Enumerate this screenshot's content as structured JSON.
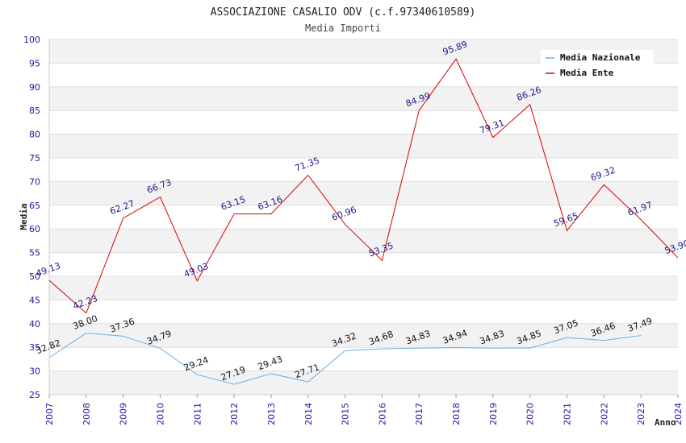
{
  "chart_data": {
    "type": "line",
    "title": "ASSOCIAZIONE CASALIO ODV (c.f.97340610589)",
    "subtitle": "Media Importi",
    "xlabel": "Anno",
    "ylabel": "Media",
    "ylim": [
      25,
      100
    ],
    "yticks": [
      25,
      30,
      35,
      40,
      45,
      50,
      55,
      60,
      65,
      70,
      75,
      80,
      85,
      90,
      95,
      100
    ],
    "x": [
      "2007",
      "2008",
      "2009",
      "2010",
      "2011",
      "2012",
      "2013",
      "2014",
      "2015",
      "2016",
      "2017",
      "2018",
      "2019",
      "2020",
      "2021",
      "2022",
      "2023",
      "2024"
    ],
    "grid": true,
    "legend_position": "top-right",
    "series": [
      {
        "name": "Media Nazionale",
        "color": "#6aaee6",
        "values": [
          32.82,
          38.0,
          37.36,
          34.79,
          29.24,
          27.19,
          29.43,
          27.71,
          34.32,
          34.68,
          34.83,
          34.94,
          34.83,
          34.85,
          37.05,
          36.46,
          37.49,
          null
        ],
        "labels": [
          "32.82",
          "38.00",
          "37.36",
          "34.79",
          "29.24",
          "27.19",
          "29.43",
          "27.71",
          "34.32",
          "34.68",
          "34.83",
          "34.94",
          "34.83",
          "34.85",
          "37.05",
          "36.46",
          "37.49",
          ""
        ]
      },
      {
        "name": "Media Ente",
        "color": "#dd0000",
        "values": [
          49.13,
          42.23,
          62.27,
          66.73,
          49.03,
          63.15,
          63.16,
          71.35,
          60.96,
          53.35,
          84.99,
          95.89,
          79.31,
          86.26,
          59.65,
          69.32,
          61.97,
          53.9
        ],
        "labels": [
          "49.13",
          "42.23",
          "62.27",
          "66.73",
          "49.03",
          "63.15",
          "63.16",
          "71.35",
          "60.96",
          "53.35",
          "84.99",
          "95.89",
          "79.31",
          "86.26",
          "59.65",
          "69.32",
          "61.97",
          "53.90"
        ]
      }
    ]
  }
}
